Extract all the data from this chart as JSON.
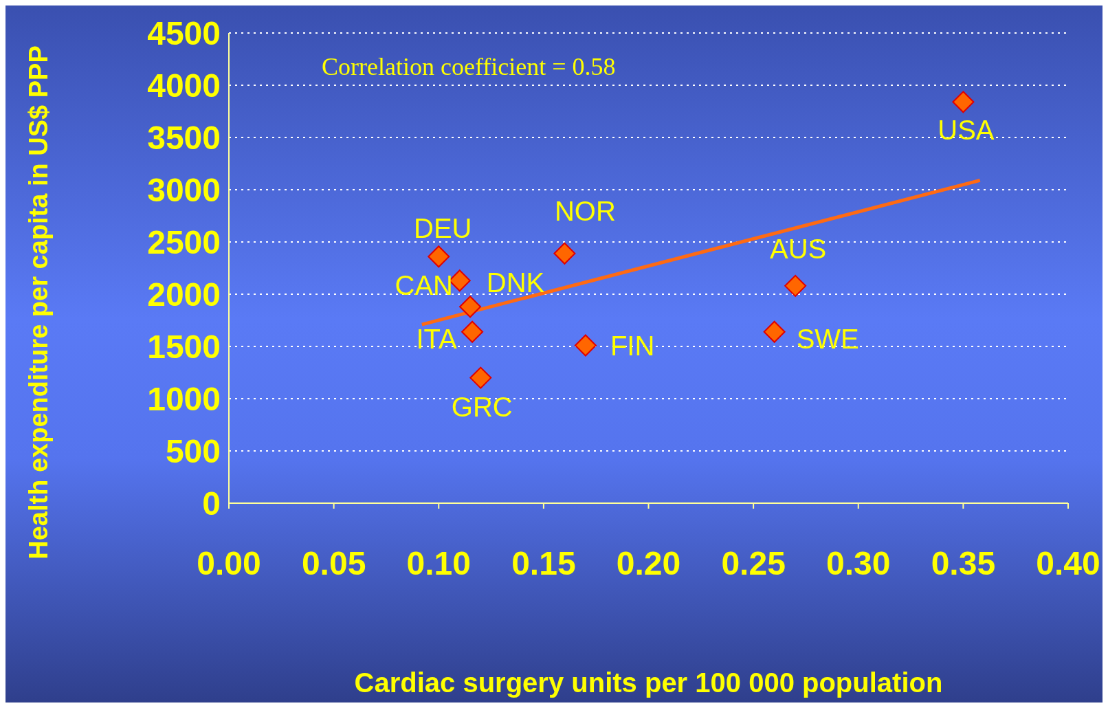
{
  "chart_data": {
    "type": "scatter",
    "xlabel": "Cardiac surgery units per 100 000 population",
    "ylabel": "Health expenditure per capita in US$ PPP",
    "xlim": [
      0,
      0.4
    ],
    "xticks": [
      {
        "value": 0,
        "label": "0.00"
      },
      {
        "value": 0.05,
        "label": "0.05"
      },
      {
        "value": 0.1,
        "label": "0.10"
      },
      {
        "value": 0.15,
        "label": "0.15"
      },
      {
        "value": 0.2,
        "label": "0.20"
      },
      {
        "value": 0.25,
        "label": "0.25"
      },
      {
        "value": 0.3,
        "label": "0.30"
      },
      {
        "value": 0.35,
        "label": "0.35"
      },
      {
        "value": 0.4,
        "label": "0.40"
      }
    ],
    "ylim": [
      0,
      4500
    ],
    "yticks": [
      0,
      500,
      1000,
      1500,
      2000,
      2500,
      3000,
      3500,
      4000,
      4500
    ],
    "grid": "y",
    "legend": false,
    "series": [
      {
        "marker": "diamond",
        "color": "#ff6600",
        "x": [
          0.1,
          0.11,
          0.115,
          0.116,
          0.12,
          0.16,
          0.17,
          0.27,
          0.26,
          0.35
        ],
        "values": [
          2360,
          2130,
          1880,
          1640,
          1200,
          2390,
          1510,
          2080,
          1640,
          3840
        ]
      },
      {
        "type": "line",
        "color": "#ff6a13",
        "x": [
          0.092,
          0.358
        ],
        "values": [
          1710,
          3090
        ]
      }
    ],
    "annotations": [
      "Correlation coefficient = 0.58",
      {
        "text": "DEU",
        "x": 0.1,
        "y": 2360
      },
      {
        "text": "CAN",
        "x": 0.11,
        "y": 2130
      },
      {
        "text": "DNK",
        "x": 0.115,
        "y": 1880
      },
      {
        "text": "ITA",
        "x": 0.116,
        "y": 1640
      },
      {
        "text": "GRC",
        "x": 0.12,
        "y": 1200
      },
      {
        "text": "NOR",
        "x": 0.16,
        "y": 2390
      },
      {
        "text": "FIN",
        "x": 0.17,
        "y": 1510
      },
      {
        "text": "AUS",
        "x": 0.27,
        "y": 2080
      },
      {
        "text": "SWE",
        "x": 0.26,
        "y": 1640
      },
      {
        "text": "USA",
        "x": 0.35,
        "y": 3840
      }
    ]
  }
}
